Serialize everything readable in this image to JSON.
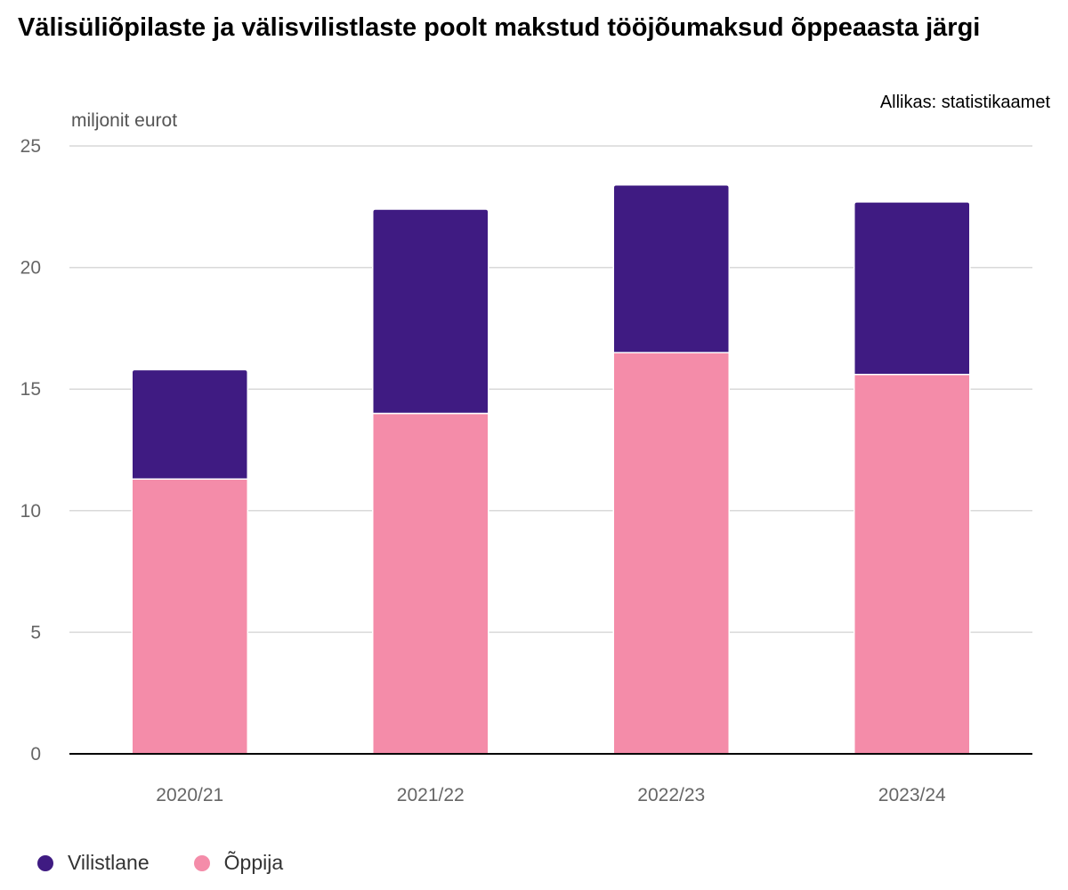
{
  "chart_data": {
    "type": "bar",
    "stacked": true,
    "title": "Välisüliõpilaste ja välisvilistlaste poolt makstud tööjõumaksud õppeaasta järgi",
    "source": "Allikas: statistikaamet",
    "ylabel": "miljonit eurot",
    "xlabel": "",
    "categories": [
      "2020/21",
      "2021/22",
      "2022/23",
      "2023/24"
    ],
    "series": [
      {
        "name": "Õppija",
        "values": [
          11.3,
          14.0,
          16.5,
          15.6
        ],
        "color": "#f48ca9"
      },
      {
        "name": "Vilistlane",
        "values": [
          4.5,
          8.4,
          6.9,
          7.1
        ],
        "color": "#3f1b82"
      }
    ],
    "legend_order": [
      "Vilistlane",
      "Õppija"
    ],
    "ylim": [
      0,
      25
    ],
    "yticks": [
      0,
      5,
      10,
      15,
      20,
      25
    ],
    "grid": true,
    "legend_position": "bottom-left"
  }
}
